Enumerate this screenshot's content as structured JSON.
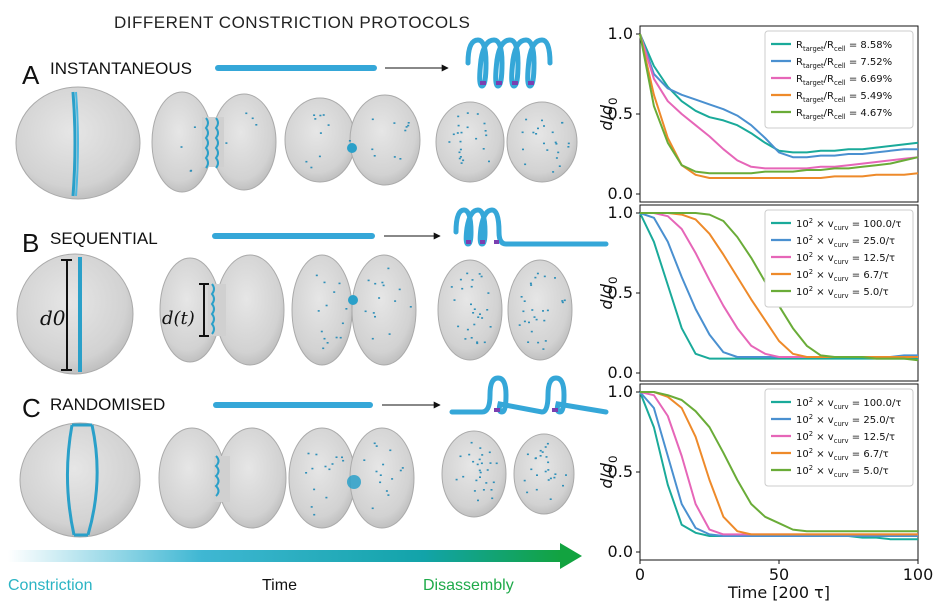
{
  "figure": {
    "title": "DIFFERENT CONSTRICTION PROTOCOLS",
    "panels": [
      {
        "letter": "A",
        "name": "INSTANTANEOUS"
      },
      {
        "letter": "B",
        "name": "SEQUENTIAL"
      },
      {
        "letter": "C",
        "name": "RANDOMISED"
      }
    ],
    "annotations": {
      "d0": "d0",
      "dt": "d(t)"
    },
    "timeline": {
      "left": "Constriction",
      "middle": "Time",
      "right": "Disassembly",
      "colors": {
        "left": "#2bb4c4",
        "middle": "#111111",
        "right": "#1faa4a"
      }
    }
  },
  "colors": {
    "teal": "#1aaa9a",
    "blue": "#4a90d0",
    "pink": "#e666b8",
    "orange": "#ee8a2a",
    "green": "#6aac38",
    "filament": "#35a7d8",
    "cell": "#d3d3d3"
  },
  "chart_data": [
    {
      "type": "line",
      "panel": "A",
      "ylabel": "d/d0",
      "xlim": [
        0,
        100
      ],
      "ylim": [
        -0.05,
        1.05
      ],
      "xticks": [],
      "yticks": [
        0.0,
        0.5,
        1.0
      ],
      "ytick_labels": [
        "0.0",
        "0.5",
        "1.0"
      ],
      "legend_position": "top-right",
      "x": [
        0,
        5,
        10,
        15,
        20,
        25,
        30,
        35,
        40,
        45,
        50,
        55,
        60,
        65,
        70,
        75,
        80,
        85,
        90,
        95,
        100
      ],
      "series": [
        {
          "name": "R_target/R_cell = 8.58%",
          "color": "teal",
          "values": [
            1.0,
            0.8,
            0.67,
            0.58,
            0.52,
            0.48,
            0.46,
            0.43,
            0.38,
            0.32,
            0.27,
            0.26,
            0.26,
            0.27,
            0.27,
            0.28,
            0.28,
            0.29,
            0.3,
            0.31,
            0.32
          ]
        },
        {
          "name": "R_target/R_cell = 7.52%",
          "color": "blue",
          "values": [
            1.0,
            0.75,
            0.66,
            0.62,
            0.59,
            0.56,
            0.53,
            0.49,
            0.43,
            0.35,
            0.26,
            0.23,
            0.23,
            0.24,
            0.24,
            0.25,
            0.25,
            0.26,
            0.27,
            0.28,
            0.28
          ]
        },
        {
          "name": "R_target/R_cell = 6.69%",
          "color": "pink",
          "values": [
            1.0,
            0.72,
            0.58,
            0.5,
            0.43,
            0.36,
            0.28,
            0.21,
            0.17,
            0.16,
            0.16,
            0.16,
            0.16,
            0.17,
            0.17,
            0.18,
            0.19,
            0.2,
            0.21,
            0.22,
            0.23
          ]
        },
        {
          "name": "R_target/R_cell = 5.49%",
          "color": "orange",
          "values": [
            1.0,
            0.62,
            0.35,
            0.18,
            0.12,
            0.1,
            0.1,
            0.1,
            0.1,
            0.1,
            0.1,
            0.1,
            0.1,
            0.1,
            0.11,
            0.11,
            0.11,
            0.12,
            0.12,
            0.12,
            0.13
          ]
        },
        {
          "name": "R_target/R_cell = 4.67%",
          "color": "green",
          "values": [
            1.0,
            0.55,
            0.32,
            0.18,
            0.14,
            0.13,
            0.13,
            0.13,
            0.13,
            0.14,
            0.14,
            0.14,
            0.15,
            0.15,
            0.16,
            0.16,
            0.17,
            0.18,
            0.19,
            0.21,
            0.23
          ]
        }
      ]
    },
    {
      "type": "line",
      "panel": "B",
      "ylabel": "d/d0",
      "xlim": [
        0,
        100
      ],
      "ylim": [
        -0.05,
        1.05
      ],
      "xticks": [],
      "yticks": [
        0.0,
        0.5,
        1.0
      ],
      "ytick_labels": [
        "0.0",
        "0.5",
        "1.0"
      ],
      "legend_position": "top-right",
      "x": [
        0,
        5,
        10,
        15,
        20,
        25,
        30,
        35,
        40,
        45,
        50,
        55,
        60,
        65,
        70,
        75,
        80,
        85,
        90,
        95,
        100
      ],
      "series": [
        {
          "name": "10^2 × v_curv = 100.0/τ",
          "color": "teal",
          "values": [
            1.0,
            0.82,
            0.55,
            0.28,
            0.12,
            0.09,
            0.09,
            0.09,
            0.09,
            0.09,
            0.09,
            0.09,
            0.09,
            0.09,
            0.09,
            0.09,
            0.09,
            0.09,
            0.09,
            0.09,
            0.09
          ]
        },
        {
          "name": "10^2 × v_curv = 25.0/τ",
          "color": "blue",
          "values": [
            1.0,
            0.97,
            0.82,
            0.6,
            0.4,
            0.24,
            0.13,
            0.1,
            0.1,
            0.1,
            0.1,
            0.1,
            0.1,
            0.1,
            0.1,
            0.1,
            0.1,
            0.1,
            0.1,
            0.11,
            0.11
          ]
        },
        {
          "name": "10^2 × v_curv = 12.5/τ",
          "color": "pink",
          "values": [
            1.0,
            1.0,
            0.98,
            0.9,
            0.75,
            0.58,
            0.42,
            0.28,
            0.17,
            0.12,
            0.1,
            0.1,
            0.1,
            0.1,
            0.1,
            0.1,
            0.1,
            0.1,
            0.1,
            0.1,
            0.1
          ]
        },
        {
          "name": "10^2 × v_curv = 6.7/τ",
          "color": "orange",
          "values": [
            1.0,
            1.0,
            1.0,
            0.99,
            0.96,
            0.87,
            0.74,
            0.6,
            0.46,
            0.33,
            0.2,
            0.12,
            0.1,
            0.1,
            0.1,
            0.1,
            0.1,
            0.1,
            0.1,
            0.1,
            0.1
          ]
        },
        {
          "name": "10^2 × v_curv = 5.0/τ",
          "color": "green",
          "values": [
            1.0,
            1.0,
            1.0,
            1.0,
            1.0,
            0.99,
            0.95,
            0.85,
            0.72,
            0.57,
            0.42,
            0.28,
            0.17,
            0.11,
            0.1,
            0.1,
            0.1,
            0.09,
            0.09,
            0.09,
            0.08
          ]
        }
      ]
    },
    {
      "type": "line",
      "panel": "C",
      "ylabel": "d/d0",
      "xlabel": "Time [200 τ]",
      "xlim": [
        0,
        100
      ],
      "ylim": [
        -0.05,
        1.05
      ],
      "xticks": [
        0,
        50,
        100
      ],
      "xtick_labels": [
        "0",
        "50",
        "100"
      ],
      "yticks": [
        0.0,
        0.5,
        1.0
      ],
      "ytick_labels": [
        "0.0",
        "0.5",
        "1.0"
      ],
      "legend_position": "top-right",
      "x": [
        0,
        5,
        10,
        15,
        20,
        25,
        30,
        35,
        40,
        45,
        50,
        55,
        60,
        65,
        70,
        75,
        80,
        85,
        90,
        95,
        100
      ],
      "series": [
        {
          "name": "10^2 × v_curv = 100.0/τ",
          "color": "teal",
          "values": [
            1.0,
            0.78,
            0.42,
            0.17,
            0.12,
            0.1,
            0.1,
            0.1,
            0.1,
            0.1,
            0.1,
            0.1,
            0.1,
            0.1,
            0.1,
            0.1,
            0.09,
            0.09,
            0.08,
            0.08,
            0.08
          ]
        },
        {
          "name": "10^2 × v_curv = 25.0/τ",
          "color": "blue",
          "values": [
            1.0,
            0.9,
            0.6,
            0.3,
            0.15,
            0.11,
            0.1,
            0.1,
            0.1,
            0.1,
            0.1,
            0.1,
            0.1,
            0.1,
            0.1,
            0.1,
            0.1,
            0.1,
            0.1,
            0.1,
            0.1
          ]
        },
        {
          "name": "10^2 × v_curv = 12.5/τ",
          "color": "pink",
          "values": [
            1.0,
            0.98,
            0.85,
            0.6,
            0.3,
            0.14,
            0.11,
            0.11,
            0.11,
            0.11,
            0.11,
            0.11,
            0.11,
            0.11,
            0.11,
            0.11,
            0.11,
            0.11,
            0.11,
            0.11,
            0.11
          ]
        },
        {
          "name": "10^2 × v_curv = 6.7/τ",
          "color": "orange",
          "values": [
            1.0,
            1.0,
            0.97,
            0.9,
            0.72,
            0.45,
            0.22,
            0.13,
            0.11,
            0.11,
            0.11,
            0.11,
            0.11,
            0.11,
            0.11,
            0.11,
            0.11,
            0.11,
            0.11,
            0.11,
            0.11
          ]
        },
        {
          "name": "10^2 × v_curv = 5.0/τ",
          "color": "green",
          "values": [
            1.0,
            1.0,
            0.98,
            0.95,
            0.88,
            0.78,
            0.62,
            0.45,
            0.3,
            0.22,
            0.18,
            0.14,
            0.13,
            0.13,
            0.13,
            0.13,
            0.13,
            0.13,
            0.13,
            0.13,
            0.13
          ]
        }
      ]
    }
  ]
}
